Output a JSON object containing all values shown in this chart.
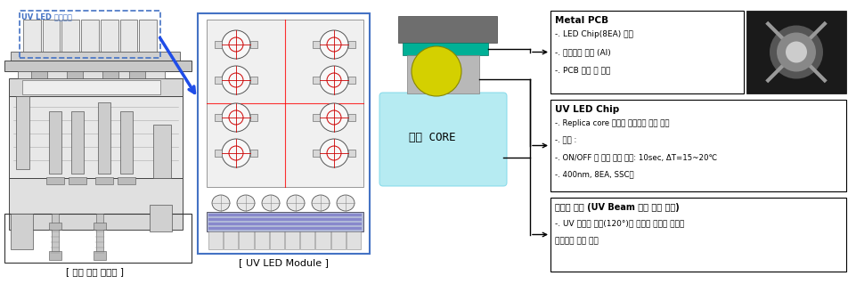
{
  "bg_color": "#ffffff",
  "left_label": "[ 렌즈 금형 조립도 ]",
  "middle_label": "[ UV LED Module ]",
  "uv_led_label": "UV LED 조광장치",
  "toumyeong_core_label": "투명 CORE",
  "box1_title": "Metal PCB",
  "box1_lines": [
    "-. LED Chip(8EA) 실장",
    "-. 열전도도 고려 (Al)",
    "-. PCB 설계 및 제작"
  ],
  "box2_title": "UV LED Chip",
  "box2_lines": [
    "-. Replica core 투과율 고려하며 파장 선정",
    "-. 광량 :",
    "-. ON/OFF 시 온도 변화 측정: 10sec, ΔT=15~20℃",
    "-. 400nm, 8EA, SSC사"
  ],
  "box3_line0": "하우징 지그 (UV Beam 간접 집광 역할)",
  "box3_lines": [
    "-. UV 광원의 방사(120°)를 원통의 하우징 지그를",
    "이용하여 간접 집광"
  ],
  "gray_color": "#696969",
  "teal_color": "#00b096",
  "yellow_color": "#d4d000",
  "lightblue_color": "#aae8f0",
  "dashed_box_color": "#4472c4",
  "led_module_border": "#4472c4",
  "arrow_color": "#1f4de8"
}
